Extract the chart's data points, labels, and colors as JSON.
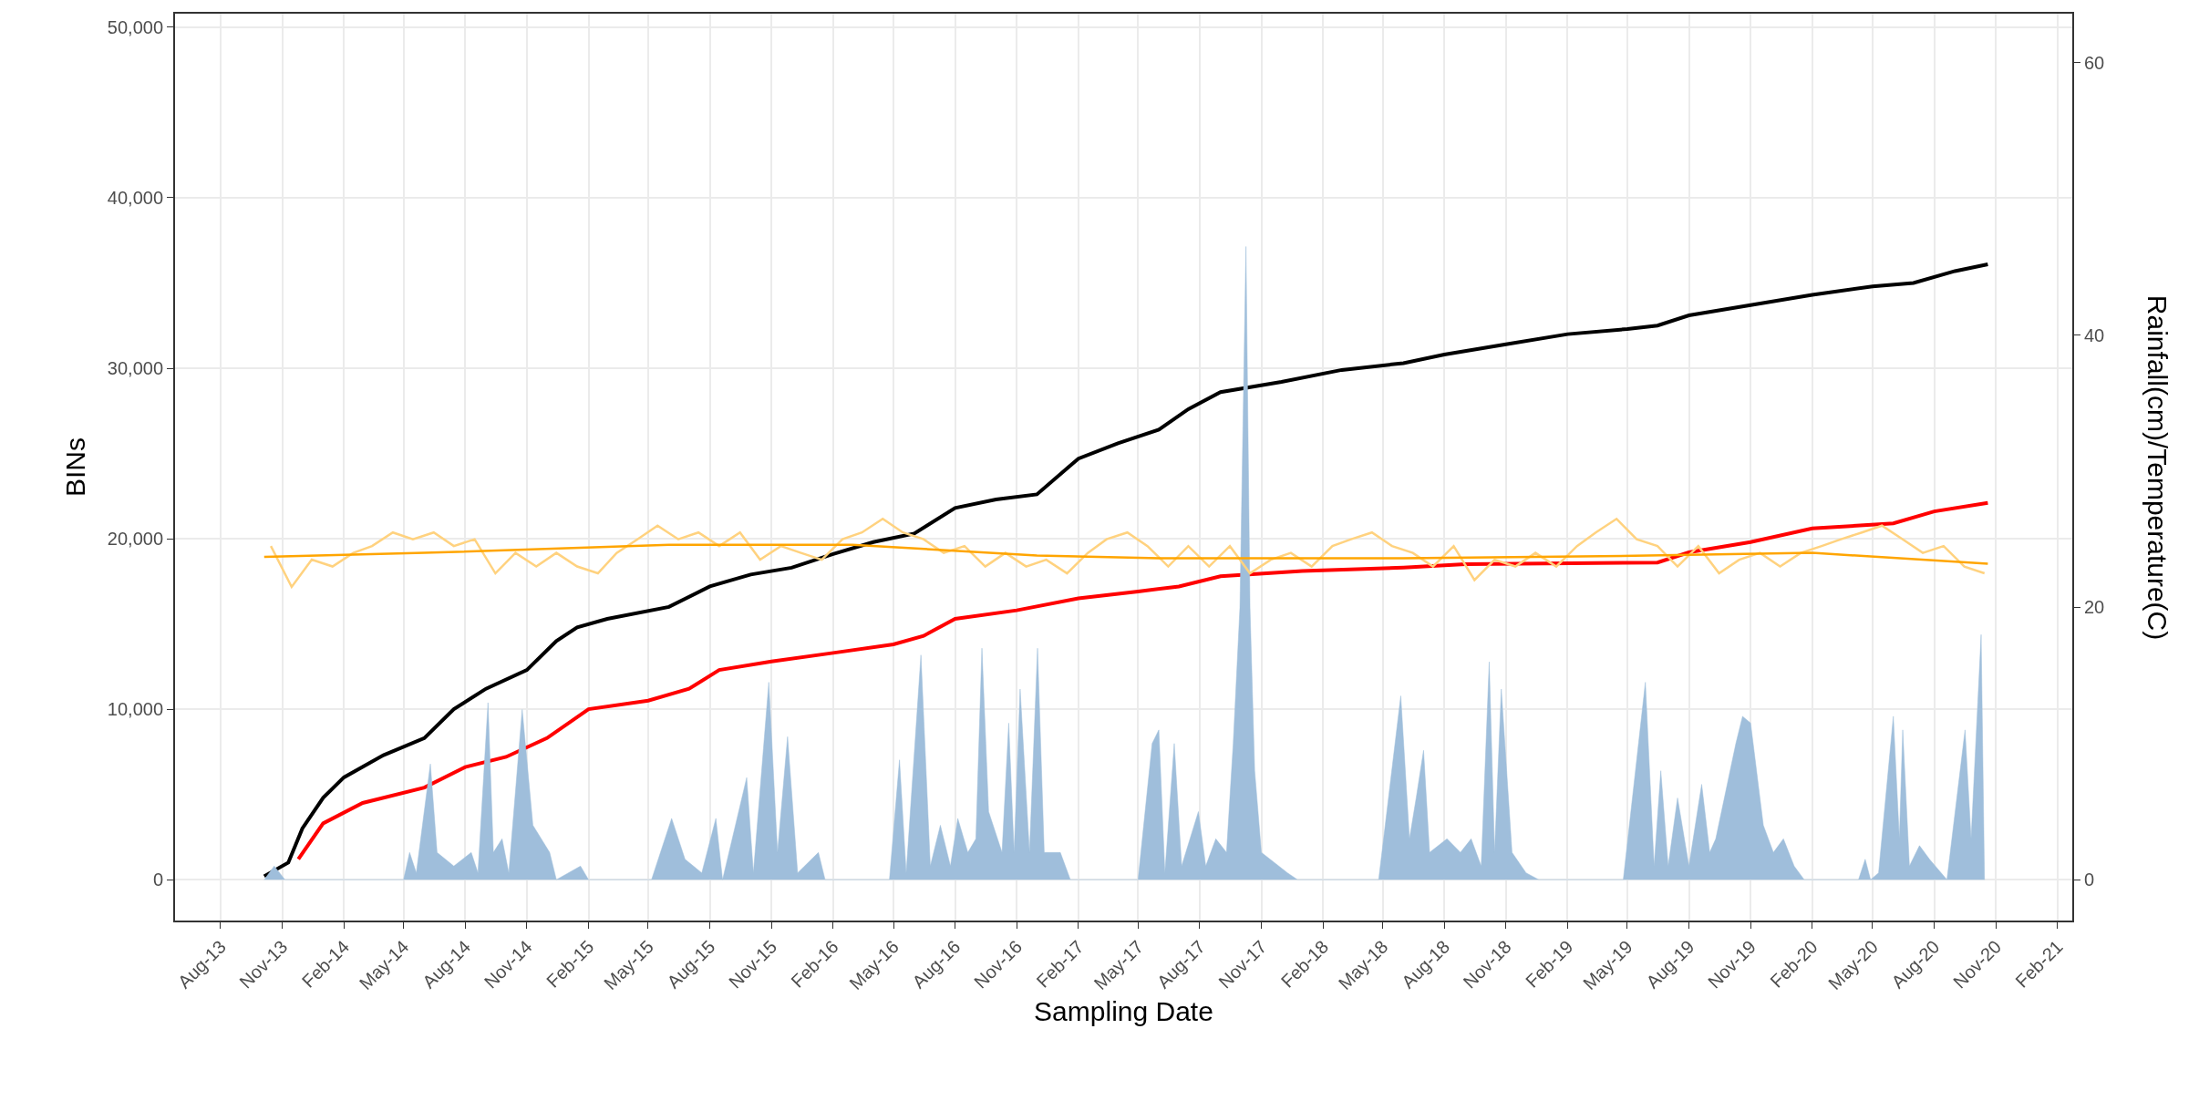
{
  "chart_data": {
    "type": "line",
    "xlabel": "Sampling Date",
    "ylabel": "BINs",
    "y2label": "Rainfall(cm)/Temperature(C)",
    "xlim": [
      "2013-05-25",
      "2021-02-23"
    ],
    "xticks": [
      {
        "value": "2013-08-01",
        "label": "Aug-13"
      },
      {
        "value": "2013-11-01",
        "label": "Nov-13"
      },
      {
        "value": "2014-02-01",
        "label": "Feb-14"
      },
      {
        "value": "2014-05-01",
        "label": "May-14"
      },
      {
        "value": "2014-08-01",
        "label": "Aug-14"
      },
      {
        "value": "2014-11-01",
        "label": "Nov-14"
      },
      {
        "value": "2015-02-01",
        "label": "Feb-15"
      },
      {
        "value": "2015-05-01",
        "label": "May-15"
      },
      {
        "value": "2015-08-01",
        "label": "Aug-15"
      },
      {
        "value": "2015-11-01",
        "label": "Nov-15"
      },
      {
        "value": "2016-02-01",
        "label": "Feb-16"
      },
      {
        "value": "2016-05-01",
        "label": "May-16"
      },
      {
        "value": "2016-08-01",
        "label": "Aug-16"
      },
      {
        "value": "2016-11-01",
        "label": "Nov-16"
      },
      {
        "value": "2017-02-01",
        "label": "Feb-17"
      },
      {
        "value": "2017-05-01",
        "label": "May-17"
      },
      {
        "value": "2017-08-01",
        "label": "Aug-17"
      },
      {
        "value": "2017-11-01",
        "label": "Nov-17"
      },
      {
        "value": "2018-02-01",
        "label": "Feb-18"
      },
      {
        "value": "2018-05-01",
        "label": "May-18"
      },
      {
        "value": "2018-08-01",
        "label": "Aug-18"
      },
      {
        "value": "2018-11-01",
        "label": "Nov-18"
      },
      {
        "value": "2019-02-01",
        "label": "Feb-19"
      },
      {
        "value": "2019-05-01",
        "label": "May-19"
      },
      {
        "value": "2019-08-01",
        "label": "Aug-19"
      },
      {
        "value": "2019-11-01",
        "label": "Nov-19"
      },
      {
        "value": "2020-02-01",
        "label": "Feb-20"
      },
      {
        "value": "2020-05-01",
        "label": "May-20"
      },
      {
        "value": "2020-08-01",
        "label": "Aug-20"
      },
      {
        "value": "2020-11-01",
        "label": "Nov-20"
      },
      {
        "value": "2021-02-01",
        "label": "Feb-21"
      }
    ],
    "ylim": [
      -2400,
      50800
    ],
    "yticks": [
      {
        "value": 0,
        "label": "0"
      },
      {
        "value": 10000,
        "label": "10,000"
      },
      {
        "value": 20000,
        "label": "20,000"
      },
      {
        "value": 30000,
        "label": "30,000"
      },
      {
        "value": 40000,
        "label": "40,000"
      },
      {
        "value": 50000,
        "label": "50,000"
      }
    ],
    "y2lim": [
      -3,
      63.6
    ],
    "y2ticks": [
      0,
      20,
      40,
      60
    ],
    "grid": true,
    "series": [
      {
        "type": "area",
        "axis": "y2",
        "color": "#9fbedb",
        "x": [
          "2013-10-05",
          "2013-10-20",
          "2013-11-05",
          "2014-05-01",
          "2014-05-10",
          "2014-05-20",
          "2014-06-10",
          "2014-06-20",
          "2014-07-15",
          "2014-08-10",
          "2014-08-20",
          "2014-09-04",
          "2014-09-12",
          "2014-09-25",
          "2014-10-05",
          "2014-10-25",
          "2014-11-10",
          "2014-12-05",
          "2014-12-15",
          "2015-01-20",
          "2015-02-01",
          "2015-05-06",
          "2015-06-05",
          "2015-06-25",
          "2015-07-20",
          "2015-08-10",
          "2015-08-20",
          "2015-09-25",
          "2015-10-05",
          "2015-10-28",
          "2015-11-10",
          "2015-11-25",
          "2015-12-10",
          "2016-01-10",
          "2016-01-20",
          "2016-04-25",
          "2016-05-10",
          "2016-05-20",
          "2016-06-11",
          "2016-06-25",
          "2016-07-10",
          "2016-07-25",
          "2016-08-05",
          "2016-08-20",
          "2016-09-01",
          "2016-09-10",
          "2016-09-20",
          "2016-10-10",
          "2016-10-20",
          "2016-10-28",
          "2016-11-06",
          "2016-11-20",
          "2016-12-02",
          "2016-12-12",
          "2017-01-05",
          "2017-01-20",
          "2017-05-01",
          "2017-05-22",
          "2017-06-01",
          "2017-06-10",
          "2017-06-24",
          "2017-07-05",
          "2017-07-30",
          "2017-08-10",
          "2017-08-25",
          "2017-09-10",
          "2017-09-20",
          "2017-09-30",
          "2017-10-09",
          "2017-10-15",
          "2017-10-22",
          "2017-11-01",
          "2017-12-10",
          "2017-12-25",
          "2018-04-25",
          "2018-05-28",
          "2018-06-10",
          "2018-06-20",
          "2018-07-01",
          "2018-07-10",
          "2018-08-05",
          "2018-08-25",
          "2018-09-10",
          "2018-09-25",
          "2018-10-07",
          "2018-10-15",
          "2018-10-25",
          "2018-11-10",
          "2018-12-01",
          "2018-12-20",
          "2019-04-25",
          "2019-05-28",
          "2019-06-10",
          "2019-06-20",
          "2019-07-01",
          "2019-07-15",
          "2019-08-01",
          "2019-08-20",
          "2019-09-01",
          "2019-09-10",
          "2019-10-10",
          "2019-10-20",
          "2019-11-01",
          "2019-11-20",
          "2019-12-05",
          "2019-12-20",
          "2020-01-05",
          "2020-01-20",
          "2020-04-10",
          "2020-04-20",
          "2020-04-28",
          "2020-05-10",
          "2020-06-01",
          "2020-06-10",
          "2020-06-15",
          "2020-06-25",
          "2020-07-10",
          "2020-07-25",
          "2020-08-20",
          "2020-09-16",
          "2020-09-25",
          "2020-10-10",
          "2020-10-15"
        ],
        "values": [
          0,
          1,
          0,
          0,
          2,
          0.5,
          8.5,
          2,
          1,
          2,
          0.5,
          13,
          2,
          3,
          0.5,
          12.5,
          4,
          2,
          0,
          1,
          0,
          0,
          4.5,
          1.5,
          0.5,
          4.5,
          0,
          7.5,
          0.5,
          14.5,
          2,
          10.5,
          0.5,
          2,
          0,
          0,
          8.8,
          0.5,
          16.5,
          1,
          4,
          1,
          4.5,
          2,
          3,
          17,
          5,
          2,
          11.5,
          2,
          14,
          2,
          17,
          2,
          2,
          0,
          0,
          10,
          11,
          0.5,
          10,
          1,
          5,
          1,
          3,
          2,
          10,
          20,
          46.5,
          20,
          8,
          2,
          0.5,
          0,
          0,
          13.5,
          3,
          6,
          9.5,
          2,
          3,
          2,
          3,
          1,
          16,
          2,
          14,
          2,
          0.5,
          0,
          0,
          14.5,
          1,
          8,
          1,
          6,
          1,
          7,
          2,
          3,
          10,
          12,
          11.5,
          4,
          2,
          3,
          1,
          0,
          0,
          1.5,
          0,
          0.5,
          12,
          3,
          11,
          1,
          2.5,
          1.5,
          0,
          11,
          3,
          18,
          0
        ]
      },
      {
        "axis": "y2",
        "color": "#ffd27f",
        "x": [
          "2013-10-15",
          "2013-11-15",
          "2013-12-15",
          "2014-01-15",
          "2014-02-15",
          "2014-03-15",
          "2014-04-15",
          "2014-05-15",
          "2014-06-15",
          "2014-07-15",
          "2014-08-15",
          "2014-09-15",
          "2014-10-15",
          "2014-11-15",
          "2014-12-15",
          "2015-01-15",
          "2015-02-15",
          "2015-03-15",
          "2015-04-15",
          "2015-05-15",
          "2015-06-15",
          "2015-07-15",
          "2015-08-15",
          "2015-09-15",
          "2015-10-15",
          "2015-11-15",
          "2015-12-15",
          "2016-01-15",
          "2016-02-15",
          "2016-03-15",
          "2016-04-15",
          "2016-05-15",
          "2016-06-15",
          "2016-07-15",
          "2016-08-15",
          "2016-09-15",
          "2016-10-15",
          "2016-11-15",
          "2016-12-15",
          "2017-01-15",
          "2017-02-15",
          "2017-03-15",
          "2017-04-15",
          "2017-05-15",
          "2017-06-15",
          "2017-07-15",
          "2017-08-15",
          "2017-09-15",
          "2017-10-15",
          "2017-11-15",
          "2017-12-15",
          "2018-01-15",
          "2018-02-15",
          "2018-03-15",
          "2018-04-15",
          "2018-05-15",
          "2018-06-15",
          "2018-07-15",
          "2018-08-15",
          "2018-09-15",
          "2018-10-15",
          "2018-11-15",
          "2018-12-15",
          "2019-01-15",
          "2019-02-15",
          "2019-03-15",
          "2019-04-15",
          "2019-05-15",
          "2019-06-15",
          "2019-07-15",
          "2019-08-15",
          "2019-09-15",
          "2019-10-15",
          "2019-11-15",
          "2019-12-15",
          "2020-01-15",
          "2020-02-15",
          "2020-03-15",
          "2020-04-15",
          "2020-05-15",
          "2020-06-15",
          "2020-07-15",
          "2020-08-15",
          "2020-09-15",
          "2020-10-15"
        ],
        "values": [
          24.5,
          21.5,
          23.5,
          23,
          24,
          24.5,
          25.5,
          25,
          25.5,
          24.5,
          25,
          22.5,
          24,
          23,
          24,
          23,
          22.5,
          24,
          25,
          26,
          25,
          25.5,
          24.5,
          25.5,
          23.5,
          24.5,
          24,
          23.5,
          25,
          25.5,
          26.5,
          25.5,
          25,
          24,
          24.5,
          23,
          24,
          23,
          23.5,
          22.5,
          24,
          25,
          25.5,
          24.5,
          23,
          24.5,
          23,
          24.5,
          22.5,
          23.5,
          24,
          23,
          24.5,
          25,
          25.5,
          24.5,
          24,
          23,
          24.5,
          22,
          23.5,
          23,
          24,
          23,
          24.5,
          25.5,
          26.5,
          25,
          24.5,
          23,
          24.5,
          22.5,
          23.5,
          24,
          23,
          24,
          24.5,
          25,
          25.5,
          26,
          25,
          24,
          24.5,
          23,
          22.5
        ]
      },
      {
        "axis": "y2",
        "color": "#ffa500",
        "x": [
          "2013-10-05",
          "2014-06-01",
          "2015-06-01",
          "2016-03-01",
          "2016-12-01",
          "2017-06-01",
          "2018-06-01",
          "2019-06-01",
          "2020-02-01",
          "2020-10-20"
        ],
        "values": [
          23.7,
          24.0,
          24.6,
          24.6,
          23.8,
          23.6,
          23.6,
          23.8,
          24.0,
          23.2
        ]
      },
      {
        "color": "#ff0000",
        "x": [
          "2013-11-25",
          "2014-01-01",
          "2014-03-01",
          "2014-06-01",
          "2014-08-01",
          "2014-10-01",
          "2014-12-01",
          "2015-02-01",
          "2015-05-01",
          "2015-07-01",
          "2015-08-15",
          "2015-11-01",
          "2016-02-01",
          "2016-05-01",
          "2016-06-15",
          "2016-08-01",
          "2016-11-01",
          "2017-02-01",
          "2017-05-01",
          "2017-07-01",
          "2017-09-01",
          "2018-01-01",
          "2018-06-01",
          "2018-09-01",
          "2019-06-15",
          "2019-08-01",
          "2019-11-01",
          "2020-02-01",
          "2020-06-01",
          "2020-08-01",
          "2020-10-20"
        ],
        "values": [
          1200,
          3300,
          4500,
          5400,
          6600,
          7200,
          8300,
          10000,
          10500,
          11200,
          12300,
          12800,
          13300,
          13800,
          14300,
          15300,
          15800,
          16500,
          16900,
          17200,
          17800,
          18100,
          18300,
          18500,
          18600,
          19200,
          19800,
          20600,
          20900,
          21600,
          22100
        ]
      },
      {
        "color": "#000000",
        "x": [
          "2013-10-05",
          "2013-11-10",
          "2013-12-01",
          "2014-01-01",
          "2014-02-01",
          "2014-04-01",
          "2014-06-01",
          "2014-07-15",
          "2014-09-01",
          "2014-11-01",
          "2014-12-15",
          "2015-01-15",
          "2015-03-01",
          "2015-06-01",
          "2015-08-01",
          "2015-10-01",
          "2015-12-01",
          "2016-02-01",
          "2016-04-01",
          "2016-06-01",
          "2016-08-01",
          "2016-10-01",
          "2016-12-01",
          "2017-02-01",
          "2017-04-01",
          "2017-06-01",
          "2017-07-15",
          "2017-09-01",
          "2017-12-01",
          "2018-03-01",
          "2018-06-01",
          "2018-08-01",
          "2018-11-01",
          "2019-02-01",
          "2019-05-01",
          "2019-06-15",
          "2019-08-01",
          "2019-11-01",
          "2020-02-01",
          "2020-05-01",
          "2020-07-01",
          "2020-09-01",
          "2020-10-20"
        ],
        "values": [
          200,
          1000,
          3000,
          4800,
          6000,
          7300,
          8300,
          10000,
          11200,
          12300,
          14000,
          14800,
          15300,
          16000,
          17200,
          17900,
          18300,
          19100,
          19800,
          20300,
          21800,
          22300,
          22600,
          24700,
          25600,
          26400,
          27600,
          28600,
          29200,
          29900,
          30300,
          30800,
          31400,
          32000,
          32300,
          32500,
          33100,
          33700,
          34300,
          34800,
          35000,
          35700,
          36100
        ]
      }
    ]
  }
}
